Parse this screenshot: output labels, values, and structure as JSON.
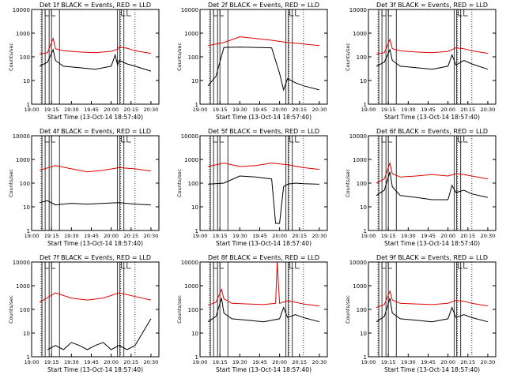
{
  "start_label": "Start Time (13-Oct-14 18:57:40)",
  "ylabel": "Counts/sec",
  "colors": {
    "events": "#000000",
    "lld": "#e00000",
    "axes": "#000000"
  },
  "x_ticks": [
    "19:00",
    "19:15",
    "19:30",
    "19:45",
    "20:00",
    "20:15",
    "20:30"
  ],
  "x_tick_values": [
    19.0,
    19.25,
    19.5,
    19.75,
    20.0,
    20.25,
    20.5
  ],
  "y_ticks": [
    "1",
    "10",
    "100",
    "1000",
    "10000"
  ],
  "y_tick_values": [
    1,
    10,
    100,
    1000,
    10000
  ],
  "xlim": [
    19.0,
    20.6
  ],
  "ylim": [
    1,
    10000
  ],
  "marker_lines": {
    "solid": [
      19.13,
      19.17,
      19.22,
      19.25,
      19.35,
      20.08,
      20.11,
      20.16
    ],
    "dotted": [
      19.12,
      20.12,
      20.3
    ]
  },
  "flag_markers": [
    19.17,
    19.25,
    20.13,
    20.2
  ],
  "chart_data": [
    {
      "type": "line",
      "title": "Det 1f BLACK = Events, RED = LLD",
      "series": [
        {
          "name": "Events",
          "x": [
            19.1,
            19.2,
            19.27,
            19.3,
            19.4,
            19.6,
            19.8,
            20.0,
            20.05,
            20.08,
            20.1,
            20.2,
            20.3,
            20.5
          ],
          "values": [
            40,
            60,
            200,
            70,
            40,
            35,
            30,
            40,
            120,
            45,
            70,
            50,
            40,
            25
          ]
        },
        {
          "name": "LLD",
          "x": [
            19.1,
            19.2,
            19.27,
            19.3,
            19.4,
            19.6,
            19.8,
            20.0,
            20.08,
            20.1,
            20.2,
            20.3,
            20.5
          ],
          "values": [
            130,
            150,
            600,
            220,
            180,
            160,
            150,
            170,
            210,
            260,
            230,
            180,
            140
          ]
        }
      ]
    },
    {
      "type": "line",
      "title": "Det 2f BLACK = Events, RED = LLD",
      "series": [
        {
          "name": "Events",
          "x": [
            19.1,
            19.2,
            19.3,
            19.5,
            19.7,
            19.9,
            20.0,
            20.05,
            20.1,
            20.2,
            20.3,
            20.5
          ],
          "values": [
            6,
            15,
            250,
            260,
            250,
            240,
            20,
            4,
            12,
            8,
            6,
            4
          ]
        },
        {
          "name": "LLD",
          "x": [
            19.1,
            19.3,
            19.5,
            19.7,
            19.9,
            20.1,
            20.3,
            20.5
          ],
          "values": [
            300,
            400,
            700,
            600,
            500,
            400,
            350,
            300
          ]
        }
      ]
    },
    {
      "type": "line",
      "title": "Det 3f BLACK = Events, RED = LLD",
      "series": [
        {
          "name": "Events",
          "x": [
            19.1,
            19.2,
            19.27,
            19.3,
            19.4,
            19.6,
            19.8,
            20.0,
            20.05,
            20.1,
            20.2,
            20.3,
            20.5
          ],
          "values": [
            40,
            60,
            200,
            70,
            40,
            35,
            30,
            40,
            120,
            45,
            70,
            50,
            30
          ]
        },
        {
          "name": "LLD",
          "x": [
            19.1,
            19.2,
            19.27,
            19.3,
            19.4,
            19.6,
            19.8,
            20.0,
            20.1,
            20.2,
            20.3,
            20.5
          ],
          "values": [
            130,
            150,
            550,
            220,
            180,
            160,
            150,
            170,
            240,
            220,
            180,
            140
          ]
        }
      ]
    },
    {
      "type": "line",
      "title": "Det 4f BLACK = Events, RED = LLD",
      "series": [
        {
          "name": "Events",
          "x": [
            19.1,
            19.2,
            19.3,
            19.5,
            19.7,
            19.9,
            20.1,
            20.3,
            20.5
          ],
          "values": [
            15,
            18,
            12,
            14,
            13,
            14,
            15,
            13,
            12
          ]
        },
        {
          "name": "LLD",
          "x": [
            19.1,
            19.3,
            19.5,
            19.7,
            19.9,
            20.1,
            20.3,
            20.5
          ],
          "values": [
            350,
            550,
            400,
            300,
            350,
            450,
            400,
            320
          ]
        }
      ]
    },
    {
      "type": "line",
      "title": "Det 5f BLACK = Events, RED = LLD",
      "series": [
        {
          "name": "Events",
          "x": [
            19.1,
            19.3,
            19.5,
            19.7,
            19.9,
            19.95,
            20.0,
            20.05,
            20.1,
            20.2,
            20.3,
            20.5
          ],
          "values": [
            90,
            100,
            200,
            180,
            150,
            2,
            2,
            70,
            90,
            100,
            95,
            90
          ]
        },
        {
          "name": "LLD",
          "x": [
            19.1,
            19.3,
            19.5,
            19.7,
            19.9,
            20.1,
            20.3,
            20.5
          ],
          "values": [
            500,
            700,
            500,
            550,
            700,
            600,
            450,
            380
          ]
        }
      ]
    },
    {
      "type": "line",
      "title": "Det 6f BLACK = Events, RED = LLD",
      "series": [
        {
          "name": "Events",
          "x": [
            19.1,
            19.2,
            19.27,
            19.3,
            19.4,
            19.6,
            19.8,
            20.0,
            20.05,
            20.1,
            20.2,
            20.3,
            20.5
          ],
          "values": [
            30,
            50,
            300,
            70,
            30,
            25,
            20,
            20,
            80,
            40,
            50,
            35,
            25
          ]
        },
        {
          "name": "LLD",
          "x": [
            19.1,
            19.2,
            19.27,
            19.3,
            19.4,
            19.6,
            19.8,
            20.0,
            20.1,
            20.2,
            20.3,
            20.5
          ],
          "values": [
            100,
            150,
            700,
            250,
            180,
            200,
            230,
            200,
            250,
            230,
            200,
            150
          ]
        }
      ]
    },
    {
      "type": "line",
      "title": "Det 7f BLACK = Events, RED = LLD",
      "series": [
        {
          "name": "Events",
          "x": [
            19.2,
            19.3,
            19.4,
            19.5,
            19.6,
            19.7,
            19.8,
            19.9,
            20.0,
            20.1,
            20.2,
            20.3,
            20.5
          ],
          "values": [
            2,
            3,
            2,
            4,
            3,
            2,
            3,
            4,
            2,
            3,
            2,
            3,
            40
          ]
        },
        {
          "name": "LLD",
          "x": [
            19.1,
            19.3,
            19.5,
            19.7,
            19.9,
            20.1,
            20.3,
            20.5
          ],
          "values": [
            200,
            500,
            300,
            250,
            300,
            500,
            350,
            250
          ]
        }
      ]
    },
    {
      "type": "line",
      "title": "Det 8f BLACK = Events, RED = LLD",
      "series": [
        {
          "name": "Events",
          "x": [
            19.1,
            19.2,
            19.27,
            19.3,
            19.4,
            19.6,
            19.8,
            20.0,
            20.05,
            20.1,
            20.2,
            20.3,
            20.5
          ],
          "values": [
            30,
            50,
            300,
            70,
            40,
            35,
            30,
            40,
            120,
            45,
            60,
            45,
            30
          ]
        },
        {
          "name": "LLD",
          "x": [
            19.1,
            19.2,
            19.27,
            19.3,
            19.4,
            19.6,
            19.8,
            19.95,
            19.97,
            20.0,
            20.1,
            20.2,
            20.3,
            20.5
          ],
          "values": [
            150,
            200,
            700,
            280,
            180,
            170,
            160,
            180,
            10000,
            180,
            230,
            200,
            170,
            140
          ]
        }
      ]
    },
    {
      "type": "line",
      "title": "Det 9f BLACK = Events, RED = LLD",
      "series": [
        {
          "name": "Events",
          "x": [
            19.1,
            19.2,
            19.27,
            19.3,
            19.4,
            19.6,
            19.8,
            20.0,
            20.05,
            20.1,
            20.2,
            20.3,
            20.5
          ],
          "values": [
            30,
            50,
            300,
            70,
            40,
            35,
            30,
            40,
            120,
            45,
            60,
            45,
            30
          ]
        },
        {
          "name": "LLD",
          "x": [
            19.1,
            19.2,
            19.27,
            19.3,
            19.4,
            19.6,
            19.8,
            20.0,
            20.1,
            20.2,
            20.3,
            20.5
          ],
          "values": [
            120,
            160,
            600,
            250,
            180,
            170,
            160,
            180,
            240,
            220,
            180,
            140
          ]
        }
      ]
    }
  ]
}
